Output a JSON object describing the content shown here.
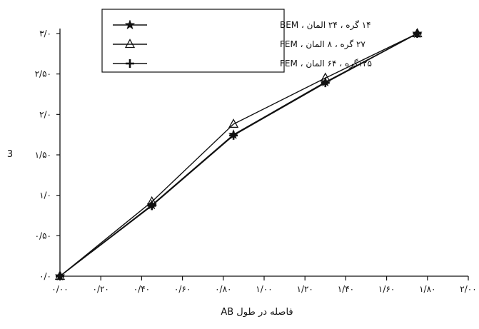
{
  "chart_data": {
    "type": "line",
    "title": "",
    "xlabel": "فاصله در طول AB",
    "ylabel": "3",
    "xlim": [
      0.0,
      2.0
    ],
    "ylim": [
      0.0,
      3.0
    ],
    "x_ticks": [
      0.0,
      0.2,
      0.4,
      0.6,
      0.8,
      1.0,
      1.2,
      1.4,
      1.6,
      1.8,
      2.0
    ],
    "x_tick_labels": [
      "۰/۰۰",
      "۰/۲۰",
      "۰/۴۰",
      "۰/۶۰",
      "۰/۸۰",
      "۱/۰۰",
      "۱/۲۰",
      "۱/۴۰",
      "۱/۶۰",
      "۱/۸۰",
      "۲/۰۰"
    ],
    "y_ticks": [
      0.0,
      0.5,
      1.0,
      1.5,
      2.0,
      2.5,
      3.0
    ],
    "y_tick_labels": [
      "۰/۰",
      "۰/۵۰",
      "۱/۰",
      "۱/۵۰",
      "۲/۰",
      "۲/۵۰",
      "۳/۰"
    ],
    "grid": false,
    "legend_position": "top-left",
    "series": [
      {
        "name": "۱۴ گره ، ۲۴ المان ، BEM",
        "marker": "star",
        "x": [
          0.0,
          0.45,
          0.85,
          1.3,
          1.75
        ],
        "y": [
          0.0,
          0.88,
          1.75,
          2.4,
          3.0
        ]
      },
      {
        "name": "۲۷ گره ، ۸ المان ، FEM",
        "marker": "triangle",
        "x": [
          0.0,
          0.45,
          0.85,
          1.3,
          1.75
        ],
        "y": [
          0.0,
          0.92,
          1.88,
          2.45,
          3.0
        ]
      },
      {
        "name": "۱۲۵گره ، ۶۴ المان ، FEM",
        "marker": "plus",
        "x": [
          0.0,
          0.45,
          0.85,
          1.3,
          1.75
        ],
        "y": [
          0.0,
          0.87,
          1.74,
          2.39,
          3.0
        ]
      }
    ],
    "line_color": "#111111"
  }
}
